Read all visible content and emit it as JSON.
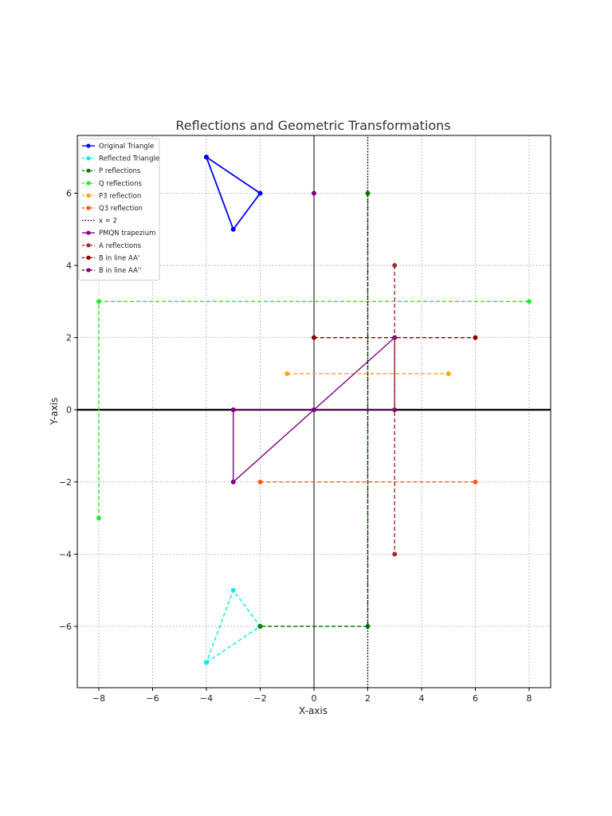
{
  "chart_data": {
    "type": "line",
    "title": "Reflections and Geometric Transformations",
    "xlabel": "X-axis",
    "ylabel": "Y-axis",
    "xlim": [
      -8.8,
      8.8
    ],
    "ylim": [
      -7.7,
      7.6
    ],
    "xticks": [
      -8,
      -6,
      -4,
      -2,
      0,
      2,
      4,
      6,
      8
    ],
    "yticks": [
      -6,
      -4,
      -2,
      0,
      2,
      4,
      6
    ],
    "grid": true,
    "legend_position": "top-left",
    "series": [
      {
        "name": "Original Triangle",
        "color": "#0000ff",
        "dash": "solid",
        "marker": true,
        "segments": [
          [
            [
              -4,
              7
            ],
            [
              -2,
              6
            ],
            [
              -3,
              5
            ],
            [
              -4,
              7
            ]
          ]
        ]
      },
      {
        "name": "Reflected Triangle",
        "color": "#00eeee",
        "dash": "dashed",
        "marker": true,
        "segments": [
          [
            [
              -4,
              -7
            ],
            [
              -2,
              -6
            ],
            [
              -3,
              -5
            ],
            [
              -4,
              -7
            ]
          ]
        ]
      },
      {
        "name": "P reflections",
        "color": "#008000",
        "dash": "dashed",
        "marker": true,
        "segments": [
          [
            [
              2,
              6
            ],
            [
              2,
              -6
            ],
            [
              -2,
              -6
            ]
          ]
        ]
      },
      {
        "name": "Q reflections",
        "color": "#22ee22",
        "dash": "dashed",
        "marker": true,
        "segments": [
          [
            [
              8,
              3
            ],
            [
              -8,
              3
            ],
            [
              -8,
              -3
            ]
          ]
        ]
      },
      {
        "name": "P3 reflection",
        "color": "#ffa500",
        "dash": "dashed",
        "marker": true,
        "segments": [
          [
            [
              -1,
              1
            ],
            [
              5,
              1
            ]
          ]
        ]
      },
      {
        "name": "Q3 reflection",
        "color": "#ff5a1f",
        "dash": "dashed",
        "marker": true,
        "segments": [
          [
            [
              -2,
              -2
            ],
            [
              6,
              -2
            ]
          ]
        ]
      },
      {
        "name": "x = 2",
        "color": "#000000",
        "dash": "dotted",
        "marker": false,
        "segments": [
          [
            [
              2,
              -7.7
            ],
            [
              2,
              7.6
            ]
          ]
        ]
      },
      {
        "name": "PMQN trapezium",
        "color": "#800080",
        "dash": "solid",
        "marker": true,
        "segments": [
          [
            [
              0,
              0
            ],
            [
              3,
              2
            ],
            [
              3,
              0
            ],
            [
              -3,
              0
            ],
            [
              -3,
              -2
            ],
            [
              0,
              0
            ]
          ]
        ]
      },
      {
        "name": "A reflections",
        "color": "#a52a2a",
        "dash": "dashed",
        "marker": true,
        "segments": [
          [
            [
              3,
              4
            ],
            [
              3,
              -4
            ]
          ]
        ]
      },
      {
        "name": "B in line AA'",
        "color": "#8b0000",
        "dash": "dashed",
        "marker": true,
        "segments": [
          [
            [
              0,
              2
            ],
            [
              6,
              2
            ]
          ]
        ]
      },
      {
        "name": "B in line AA''",
        "color": "#800080",
        "dash": "dashed",
        "marker": true,
        "segments": [
          [
            [
              0,
              6
            ]
          ]
        ]
      }
    ],
    "legend_labels": [
      "Original Triangle",
      "Reflected Triangle",
      "P reflections",
      "Q reflections",
      "P3 reflection",
      "Q3 reflection",
      "x = 2",
      "PMQN trapezium",
      "A reflections",
      "B in line AA'",
      "B in line AA''"
    ]
  }
}
